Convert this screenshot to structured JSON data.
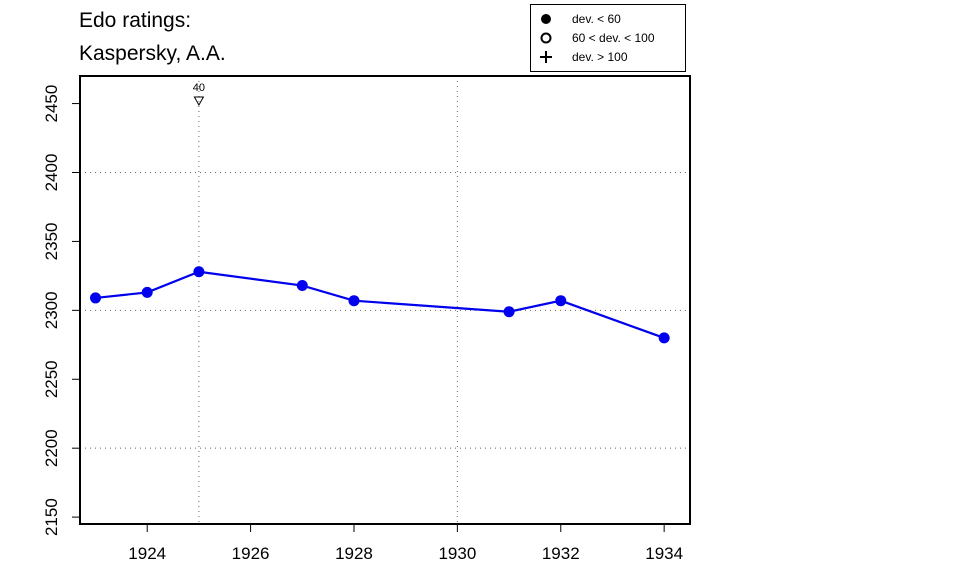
{
  "chart_data": {
    "type": "line",
    "title_lines": [
      "Edo ratings:",
      "Kaspersky, A.A."
    ],
    "xlabel": "",
    "ylabel": "",
    "xlim": [
      1922.7,
      1934.5
    ],
    "ylim": [
      2145,
      2470
    ],
    "x_ticks": [
      1924,
      1926,
      1928,
      1930,
      1932,
      1934
    ],
    "y_ticks": [
      2150,
      2200,
      2250,
      2300,
      2350,
      2400,
      2450
    ],
    "h_grid": [
      2200,
      2300,
      2400
    ],
    "v_grid": [
      1925,
      1930
    ],
    "grid_style": "dotted",
    "line_color": "#0000ee",
    "series": [
      {
        "points": [
          {
            "x": 1923,
            "y": 2309,
            "dev": "lt60"
          },
          {
            "x": 1924,
            "y": 2313,
            "dev": "lt60"
          },
          {
            "x": 1925,
            "y": 2328,
            "dev": "lt60"
          },
          {
            "x": 1927,
            "y": 2318,
            "dev": "lt60"
          },
          {
            "x": 1928,
            "y": 2307,
            "dev": "lt60"
          },
          {
            "x": 1931,
            "y": 2299,
            "dev": "lt60"
          },
          {
            "x": 1932,
            "y": 2307,
            "dev": "lt60"
          },
          {
            "x": 1934,
            "y": 2280,
            "dev": "lt60"
          }
        ]
      }
    ],
    "annotations": [
      {
        "x": 1925,
        "label": "40",
        "marker": "down-triangle"
      }
    ],
    "legend": {
      "position": "top-right",
      "items": [
        {
          "symbol": "filled-circle",
          "label": "dev. < 60"
        },
        {
          "symbol": "open-circle",
          "label": "60 < dev. < 100"
        },
        {
          "symbol": "plus",
          "label": "dev. > 100"
        }
      ]
    }
  }
}
